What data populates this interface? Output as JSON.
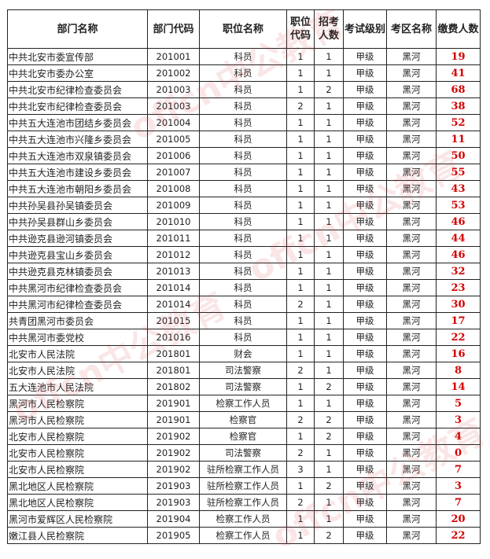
{
  "headers": [
    "部门名称",
    "部门代码",
    "职位名称",
    "职位代码",
    "招考人数",
    "考试级别",
    "考区名称",
    "缴费人数"
  ],
  "watermark": "offcn中公教育",
  "accent_color": "#d40000",
  "rows": [
    [
      "中共北安市委宣传部",
      "201001",
      "科员",
      "1",
      "1",
      "甲级",
      "黑河",
      "19"
    ],
    [
      "中共北安市委办公室",
      "201002",
      "科员",
      "1",
      "1",
      "甲级",
      "黑河",
      "41"
    ],
    [
      "中共北安市纪律检查委员会",
      "201003",
      "科员",
      "1",
      "2",
      "甲级",
      "黑河",
      "68"
    ],
    [
      "中共北安市纪律检查委员会",
      "201003",
      "科员",
      "2",
      "1",
      "甲级",
      "黑河",
      "38"
    ],
    [
      "中共五大连池市团结乡委员会",
      "201004",
      "科员",
      "1",
      "1",
      "甲级",
      "黑河",
      "52"
    ],
    [
      "中共五大连池市兴隆乡委员会",
      "201005",
      "科员",
      "1",
      "1",
      "甲级",
      "黑河",
      "11"
    ],
    [
      "中共五大连池市双泉镇委员会",
      "201006",
      "科员",
      "1",
      "1",
      "甲级",
      "黑河",
      "50"
    ],
    [
      "中共五大连池市建设乡委员会",
      "201007",
      "科员",
      "1",
      "1",
      "甲级",
      "黑河",
      "55"
    ],
    [
      "中共五大连池市朝阳乡委员会",
      "201008",
      "科员",
      "1",
      "1",
      "甲级",
      "黑河",
      "43"
    ],
    [
      "中共孙吴县孙吴镇委员会",
      "201009",
      "科员",
      "1",
      "1",
      "甲级",
      "黑河",
      "53"
    ],
    [
      "中共孙吴县群山乡委员会",
      "201010",
      "科员",
      "1",
      "1",
      "甲级",
      "黑河",
      "46"
    ],
    [
      "中共逊克县逊河镇委员会",
      "201011",
      "科员",
      "1",
      "1",
      "甲级",
      "黑河",
      "44"
    ],
    [
      "中共逊克县宝山乡委员会",
      "201012",
      "科员",
      "1",
      "1",
      "甲级",
      "黑河",
      "46"
    ],
    [
      "中共逊克县克林镇委员会",
      "201013",
      "科员",
      "1",
      "1",
      "甲级",
      "黑河",
      "32"
    ],
    [
      "中共黑河市纪律检查委员会",
      "201014",
      "科员",
      "1",
      "1",
      "甲级",
      "黑河",
      "23"
    ],
    [
      "中共黑河市纪律检查委员会",
      "201014",
      "科员",
      "2",
      "1",
      "甲级",
      "黑河",
      "30"
    ],
    [
      "共青团黑河市委员会",
      "201015",
      "科员",
      "1",
      "1",
      "甲级",
      "黑河",
      "17"
    ],
    [
      "中共黑河市委党校",
      "201016",
      "科员",
      "1",
      "1",
      "甲级",
      "黑河",
      "22"
    ],
    [
      "北安市人民法院",
      "201801",
      "财会",
      "1",
      "1",
      "甲级",
      "黑河",
      "16"
    ],
    [
      "北安市人民法院",
      "201801",
      "司法警察",
      "2",
      "1",
      "甲级",
      "黑河",
      "8"
    ],
    [
      "五大连池市人民法院",
      "201802",
      "司法警察",
      "1",
      "2",
      "甲级",
      "黑河",
      "14"
    ],
    [
      "黑河市人民检察院",
      "201901",
      "检察工作人员",
      "1",
      "1",
      "甲级",
      "黑河",
      "5"
    ],
    [
      "黑河市人民检察院",
      "201901",
      "检察官",
      "2",
      "2",
      "甲级",
      "黑河",
      "3"
    ],
    [
      "北安市人民检察院",
      "201902",
      "检察官",
      "1",
      "2",
      "甲级",
      "黑河",
      "4"
    ],
    [
      "北安市人民检察院",
      "201902",
      "司法警察",
      "2",
      "1",
      "甲级",
      "黑河",
      "0"
    ],
    [
      "北安市人民检察院",
      "201902",
      "驻所检察工作人员",
      "3",
      "1",
      "甲级",
      "黑河",
      "7"
    ],
    [
      "黑北地区人民检察院",
      "201903",
      "驻所检察工作人员",
      "1",
      "2",
      "甲级",
      "黑河",
      "3"
    ],
    [
      "黑北地区人民检察院",
      "201903",
      "驻所检察工作人员",
      "2",
      "1",
      "甲级",
      "黑河",
      "7"
    ],
    [
      "黑河市爱辉区人民检察院",
      "201904",
      "检察工作人员",
      "1",
      "1",
      "甲级",
      "黑河",
      "20"
    ],
    [
      "嫩江县人民检察院",
      "201905",
      "检察工作人员",
      "1",
      "2",
      "甲级",
      "黑河",
      "22"
    ]
  ]
}
